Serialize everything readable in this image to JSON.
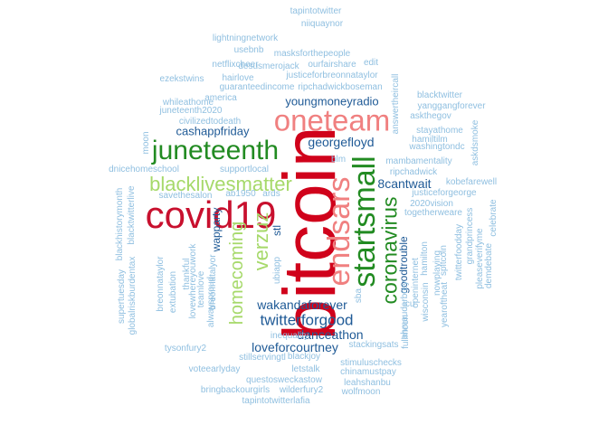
{
  "colors": {
    "red": "#c8102e",
    "pink": "#f08080",
    "darkgreen": "#228b22",
    "lightgreen": "#a6d96a",
    "navy": "#1f5a96",
    "skyblue": "#8fbfe0"
  },
  "words": [
    {
      "text": "bitcoin",
      "color": "darkred"
    },
    {
      "text": "covid19",
      "color": "red"
    },
    {
      "text": "oneteam",
      "color": "pink"
    },
    {
      "text": "juneteenth",
      "color": "darkgreen"
    },
    {
      "text": "startsmall",
      "color": "darkgreen"
    },
    {
      "text": "endsars",
      "color": "pink"
    },
    {
      "text": "blacklivesmatter",
      "color": "lightgreen"
    },
    {
      "text": "coronavirus",
      "color": "darkgreen"
    },
    {
      "text": "verzuz",
      "color": "lightgreen"
    },
    {
      "text": "homecoming",
      "color": "lightgreen"
    },
    {
      "text": "twitterforgood",
      "color": "navy"
    },
    {
      "text": "georgefloyd",
      "color": "navy"
    },
    {
      "text": "youngmoneyradio",
      "color": "navy"
    },
    {
      "text": "cashappfriday",
      "color": "navy"
    },
    {
      "text": "wakandaforever",
      "color": "navy"
    },
    {
      "text": "danceathon",
      "color": "navy"
    },
    {
      "text": "loveforcourtney",
      "color": "navy"
    },
    {
      "text": "8cantwait",
      "color": "navy"
    },
    {
      "text": "wapparty",
      "color": "navy"
    },
    {
      "text": "goodtrouble",
      "color": "navy"
    },
    {
      "text": "stl",
      "color": "navy"
    },
    {
      "text": "tapintotwitter",
      "color": "skyblue"
    },
    {
      "text": "niiquaynor",
      "color": "skyblue"
    },
    {
      "text": "lightningnetwork",
      "color": "skyblue"
    },
    {
      "text": "usebnb",
      "color": "skyblue"
    },
    {
      "text": "masksforthepeople",
      "color": "skyblue"
    },
    {
      "text": "netflixcheer",
      "color": "skyblue"
    },
    {
      "text": "desusmerojack",
      "color": "skyblue"
    },
    {
      "text": "ourfairshare",
      "color": "skyblue"
    },
    {
      "text": "edit",
      "color": "skyblue"
    },
    {
      "text": "ezekstwins",
      "color": "skyblue"
    },
    {
      "text": "hairlove",
      "color": "skyblue"
    },
    {
      "text": "justiceforbreonnataylor",
      "color": "skyblue"
    },
    {
      "text": "guaranteedincome",
      "color": "skyblue"
    },
    {
      "text": "ripchadwickboseman",
      "color": "skyblue"
    },
    {
      "text": "america",
      "color": "skyblue"
    },
    {
      "text": "whileathome",
      "color": "skyblue"
    },
    {
      "text": "juneteenth2020",
      "color": "skyblue"
    },
    {
      "text": "civilizedtodeath",
      "color": "skyblue"
    },
    {
      "text": "answertheircall",
      "color": "skyblue"
    },
    {
      "text": "blacktwitter",
      "color": "skyblue"
    },
    {
      "text": "yanggangforever",
      "color": "skyblue"
    },
    {
      "text": "askthegov",
      "color": "skyblue"
    },
    {
      "text": "stayathome",
      "color": "skyblue"
    },
    {
      "text": "hamiltilm",
      "color": "skyblue"
    },
    {
      "text": "washingtondc",
      "color": "skyblue"
    },
    {
      "text": "askdsmoke",
      "color": "skyblue"
    },
    {
      "text": "mambamentality",
      "color": "skyblue"
    },
    {
      "text": "blm",
      "color": "skyblue"
    },
    {
      "text": "ripchadwick",
      "color": "skyblue"
    },
    {
      "text": "kobefarewell",
      "color": "skyblue"
    },
    {
      "text": "justiceforgeorge",
      "color": "skyblue"
    },
    {
      "text": "2020vision",
      "color": "skyblue"
    },
    {
      "text": "togetherweare",
      "color": "skyblue"
    },
    {
      "text": "celebrate",
      "color": "skyblue"
    },
    {
      "text": "moon",
      "color": "skyblue"
    },
    {
      "text": "dnicehomeschool",
      "color": "skyblue"
    },
    {
      "text": "supportlocal",
      "color": "skyblue"
    },
    {
      "text": "savethesalon",
      "color": "skyblue"
    },
    {
      "text": "ab1950",
      "color": "skyblue"
    },
    {
      "text": "ards",
      "color": "skyblue"
    },
    {
      "text": "blackhistorymonth",
      "color": "skyblue"
    },
    {
      "text": "blacktwitterlive",
      "color": "skyblue"
    },
    {
      "text": "supertuesday",
      "color": "skyblue"
    },
    {
      "text": "globalriskburdentax",
      "color": "skyblue"
    },
    {
      "text": "breonnataylor",
      "color": "skyblue"
    },
    {
      "text": "extubation",
      "color": "skyblue"
    },
    {
      "text": "thankful",
      "color": "skyblue"
    },
    {
      "text": "lovewhereyouwork",
      "color": "skyblue"
    },
    {
      "text": "teamlove",
      "color": "skyblue"
    },
    {
      "text": "breonnatalyor",
      "color": "skyblue"
    },
    {
      "text": "alwaysproud",
      "color": "skyblue"
    },
    {
      "text": "ubiapp",
      "color": "skyblue"
    },
    {
      "text": "sba",
      "color": "skyblue"
    },
    {
      "text": "openinternet",
      "color": "skyblue"
    },
    {
      "text": "hamilton",
      "color": "skyblue"
    },
    {
      "text": "spitcoin",
      "color": "skyblue"
    },
    {
      "text": "twitterfoodday",
      "color": "skyblue"
    },
    {
      "text": "grandprincess",
      "color": "skyblue"
    },
    {
      "text": "pleaseverifyme",
      "color": "skyblue"
    },
    {
      "text": "demdebate",
      "color": "skyblue"
    },
    {
      "text": "nowplaying",
      "color": "skyblue"
    },
    {
      "text": "wisconsin",
      "color": "skyblue"
    },
    {
      "text": "yearoftheat",
      "color": "skyblue"
    },
    {
      "text": "ahmaudarbrey",
      "color": "skyblue"
    },
    {
      "text": "fullmoon",
      "color": "skyblue"
    },
    {
      "text": "icu",
      "color": "skyblue"
    },
    {
      "text": "inequality",
      "color": "skyblue"
    },
    {
      "text": "stackingsats",
      "color": "skyblue"
    },
    {
      "text": "tysonfury2",
      "color": "skyblue"
    },
    {
      "text": "stillservingtl",
      "color": "skyblue"
    },
    {
      "text": "blackjoy",
      "color": "skyblue"
    },
    {
      "text": "stimuluschecks",
      "color": "skyblue"
    },
    {
      "text": "voteearlyday",
      "color": "skyblue"
    },
    {
      "text": "letstalk",
      "color": "skyblue"
    },
    {
      "text": "chinamustpay",
      "color": "skyblue"
    },
    {
      "text": "questosweckastow",
      "color": "skyblue"
    },
    {
      "text": "leahshanbu",
      "color": "skyblue"
    },
    {
      "text": "bringbackourgirls",
      "color": "skyblue"
    },
    {
      "text": "wilderfury2",
      "color": "skyblue"
    },
    {
      "text": "wolfmoon",
      "color": "skyblue"
    },
    {
      "text": "tapintotwitterlafia",
      "color": "skyblue"
    }
  ]
}
